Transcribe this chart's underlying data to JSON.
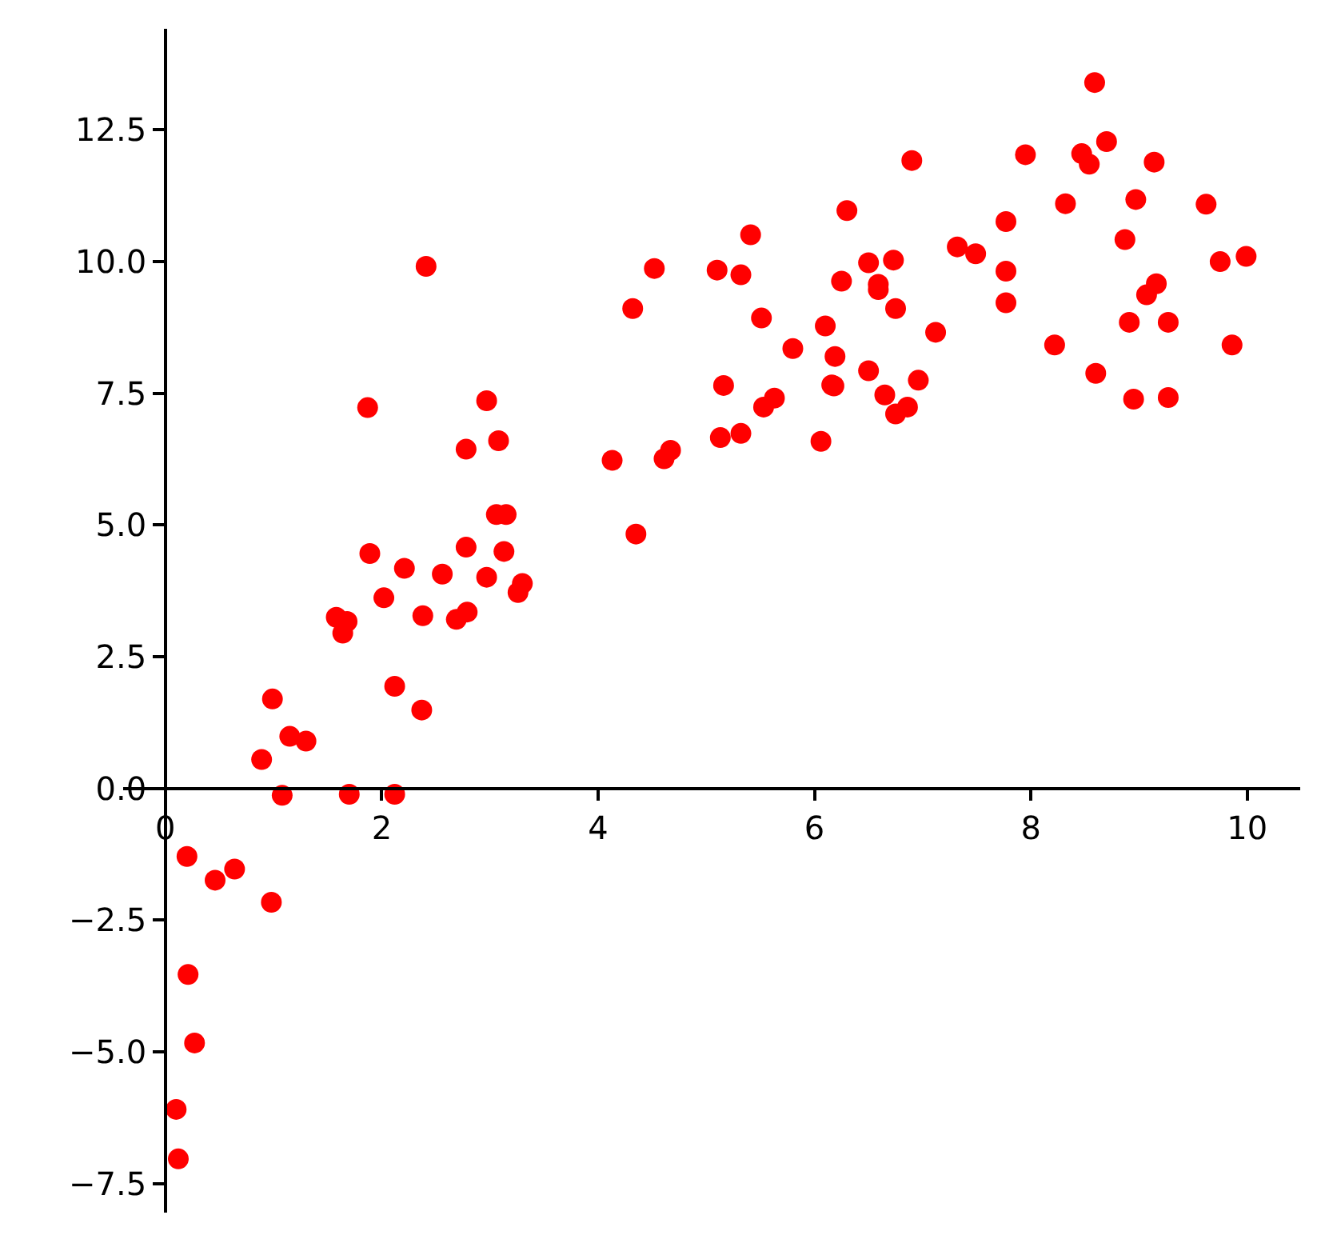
{
  "chart_data": {
    "type": "scatter",
    "color": "#ff0000",
    "marker": "circle",
    "x": [
      0.1,
      0.12,
      0.2,
      0.21,
      0.27,
      0.46,
      0.64,
      0.89,
      0.98,
      0.99,
      1.08,
      1.15,
      1.3,
      1.58,
      1.64,
      1.68,
      1.7,
      1.87,
      1.89,
      2.02,
      2.12,
      2.12,
      2.21,
      2.37,
      2.38,
      2.41,
      2.56,
      2.69,
      2.79,
      2.78,
      2.78,
      2.97,
      2.97,
      3.08,
      3.06,
      3.15,
      3.13,
      3.26,
      3.3,
      4.13,
      4.32,
      4.35,
      4.52,
      4.61,
      4.67,
      5.1,
      5.13,
      5.16,
      5.32,
      5.32,
      5.41,
      5.51,
      5.53,
      5.63,
      5.8,
      6.06,
      6.1,
      6.16,
      6.18,
      6.19,
      6.25,
      6.3,
      6.5,
      6.5,
      6.59,
      6.59,
      6.65,
      6.73,
      6.75,
      6.75,
      6.86,
      6.9,
      6.96,
      7.12,
      7.32,
      7.49,
      7.77,
      7.77,
      7.77,
      7.95,
      8.22,
      8.32,
      8.47,
      8.54,
      8.59,
      8.6,
      8.7,
      8.87,
      8.91,
      8.95,
      8.97,
      9.07,
      9.14,
      9.16,
      9.27,
      9.27,
      9.62,
      9.75,
      9.86,
      9.99
    ],
    "values": [
      -6.09,
      -7.03,
      -1.29,
      -3.53,
      -4.83,
      -1.74,
      -1.53,
      0.55,
      -2.16,
      1.7,
      -0.13,
      0.99,
      0.9,
      3.25,
      2.95,
      3.17,
      -0.11,
      7.23,
      4.46,
      3.62,
      1.94,
      -0.11,
      4.18,
      1.49,
      3.28,
      9.91,
      4.07,
      3.21,
      3.35,
      6.44,
      4.58,
      7.36,
      4.01,
      6.6,
      5.2,
      5.2,
      4.5,
      3.72,
      3.89,
      6.23,
      9.11,
      4.83,
      9.87,
      6.26,
      6.42,
      9.84,
      6.66,
      7.65,
      9.75,
      6.74,
      10.51,
      8.93,
      7.24,
      7.41,
      8.35,
      6.59,
      8.78,
      7.66,
      7.64,
      8.2,
      9.63,
      10.97,
      9.98,
      7.93,
      9.57,
      9.47,
      7.47,
      10.03,
      9.11,
      7.11,
      7.24,
      11.92,
      7.75,
      8.66,
      10.28,
      10.15,
      10.76,
      9.82,
      9.22,
      12.03,
      8.42,
      11.1,
      12.05,
      11.85,
      13.4,
      7.88,
      12.28,
      10.42,
      8.85,
      7.39,
      11.18,
      9.37,
      11.89,
      9.58,
      8.85,
      7.42,
      11.09,
      10.0,
      8.42,
      10.1
    ],
    "xlim": [
      -0.39,
      10.49
    ],
    "ylim": [
      -8.05,
      14.42
    ],
    "xticks": [
      0,
      2,
      4,
      6,
      8,
      10
    ],
    "yticks": [
      {
        "value": -7.5,
        "label": "−7.5"
      },
      {
        "value": -5,
        "label": "−5.0"
      },
      {
        "value": -2.5,
        "label": "−2.5"
      },
      {
        "value": 0,
        "label": "0.0"
      },
      {
        "value": 2.5,
        "label": "2.5"
      },
      {
        "value": 5,
        "label": "5.0"
      },
      {
        "value": 7.5,
        "label": "7.5"
      },
      {
        "value": 10,
        "label": "10.0"
      },
      {
        "value": 12.5,
        "label": "12.5"
      }
    ]
  }
}
